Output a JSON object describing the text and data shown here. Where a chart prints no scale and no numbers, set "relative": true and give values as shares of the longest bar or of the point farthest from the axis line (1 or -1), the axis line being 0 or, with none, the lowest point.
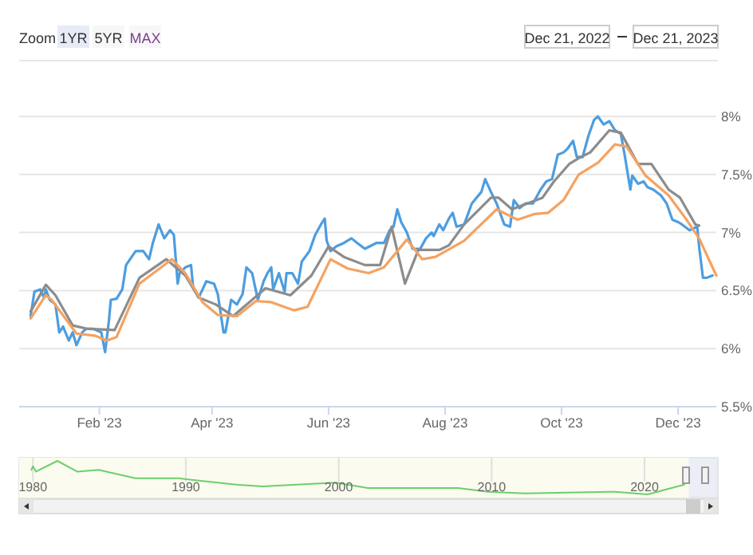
{
  "chart_data": [
    {
      "type": "line",
      "annotations": [
        "Zoom",
        "1YR",
        "5YR",
        "MAX",
        "Dec 21, 2022",
        "Dec 21, 2023"
      ],
      "xlim": [
        "2022-12-21",
        "2023-12-21"
      ],
      "xticks": [
        {
          "value": "2023-02-01",
          "label": "Feb '23"
        },
        {
          "value": "2023-04-01",
          "label": "Apr '23"
        },
        {
          "value": "2023-06-01",
          "label": "Jun '23"
        },
        {
          "value": "2023-08-01",
          "label": "Aug '23"
        },
        {
          "value": "2023-10-01",
          "label": "Oct '23"
        },
        {
          "value": "2023-12-01",
          "label": "Dec '23"
        }
      ],
      "ylim": [
        5.5,
        8
      ],
      "yticks": [
        {
          "value": 5.5,
          "label": "5.5%"
        },
        {
          "value": 6,
          "label": "6%"
        },
        {
          "value": 6.5,
          "label": "6.5%"
        },
        {
          "value": 7,
          "label": "7%"
        },
        {
          "value": 7.5,
          "label": "7.5%"
        },
        {
          "value": 8,
          "label": "8%"
        }
      ],
      "grid": "y",
      "marker": "none",
      "line_style": "solid",
      "series": [
        {
          "color": "#4d9de0",
          "x": [
            "2022-12-27",
            "2022-12-29",
            "2023-01-01",
            "2023-01-03",
            "2023-01-04",
            "2023-01-06",
            "2023-01-09",
            "2023-01-11",
            "2023-01-13",
            "2023-01-16",
            "2023-01-18",
            "2023-01-20",
            "2023-01-23",
            "2023-01-25",
            "2023-01-29",
            "2023-02-02",
            "2023-02-04",
            "2023-02-06",
            "2023-02-07",
            "2023-02-10",
            "2023-02-13",
            "2023-02-15",
            "2023-02-20",
            "2023-02-24",
            "2023-02-27",
            "2023-03-01",
            "2023-03-04",
            "2023-03-07",
            "2023-03-10",
            "2023-03-12",
            "2023-03-14",
            "2023-03-15",
            "2023-03-18",
            "2023-03-21",
            "2023-03-22",
            "2023-03-25",
            "2023-03-29",
            "2023-04-02",
            "2023-04-04",
            "2023-04-07",
            "2023-04-08",
            "2023-04-11",
            "2023-04-14",
            "2023-04-17",
            "2023-04-19",
            "2023-04-22",
            "2023-04-25",
            "2023-04-28",
            "2023-04-30",
            "2023-05-02",
            "2023-05-03",
            "2023-05-06",
            "2023-05-09",
            "2023-05-10",
            "2023-05-13",
            "2023-05-16",
            "2023-05-18",
            "2023-05-22",
            "2023-05-25",
            "2023-05-28",
            "2023-05-30",
            "2023-05-31",
            "2023-06-02",
            "2023-06-05",
            "2023-06-09",
            "2023-06-13",
            "2023-06-16",
            "2023-06-20",
            "2023-06-26",
            "2023-06-30",
            "2023-07-03",
            "2023-07-05",
            "2023-07-07",
            "2023-07-09",
            "2023-07-12",
            "2023-07-15",
            "2023-07-19",
            "2023-07-22",
            "2023-07-25",
            "2023-07-26",
            "2023-07-29",
            "2023-07-31",
            "2023-08-03",
            "2023-08-05",
            "2023-08-07",
            "2023-08-11",
            "2023-08-15",
            "2023-08-20",
            "2023-08-22",
            "2023-08-25",
            "2023-08-28",
            "2023-09-01",
            "2023-09-04",
            "2023-09-06",
            "2023-09-09",
            "2023-09-12",
            "2023-09-16",
            "2023-09-20",
            "2023-09-23",
            "2023-09-26",
            "2023-09-29",
            "2023-10-02",
            "2023-10-04",
            "2023-10-07",
            "2023-10-09",
            "2023-10-12",
            "2023-10-15",
            "2023-10-18",
            "2023-10-20",
            "2023-10-23",
            "2023-10-26",
            "2023-10-29",
            "2023-11-01",
            "2023-11-03",
            "2023-11-06",
            "2023-11-07",
            "2023-11-10",
            "2023-11-13",
            "2023-11-15",
            "2023-11-18",
            "2023-11-22",
            "2023-11-25",
            "2023-11-28",
            "2023-12-01",
            "2023-12-03",
            "2023-12-07",
            "2023-12-11",
            "2023-12-12",
            "2023-12-14",
            "2023-12-16",
            "2023-12-19"
          ],
          "values": [
            6.28,
            6.49,
            6.51,
            6.44,
            6.51,
            6.42,
            6.38,
            6.14,
            6.19,
            6.07,
            6.14,
            6.03,
            6.14,
            6.17,
            6.17,
            6.14,
            5.97,
            6.24,
            6.42,
            6.43,
            6.51,
            6.72,
            6.84,
            6.84,
            6.77,
            6.91,
            7.07,
            6.95,
            7.02,
            6.98,
            6.56,
            6.65,
            6.7,
            6.72,
            6.54,
            6.44,
            6.58,
            6.56,
            6.47,
            6.14,
            6.14,
            6.42,
            6.38,
            6.47,
            6.7,
            6.65,
            6.42,
            6.58,
            6.65,
            6.7,
            6.51,
            6.65,
            6.49,
            6.65,
            6.65,
            6.56,
            6.75,
            6.84,
            6.98,
            7.07,
            7.12,
            6.93,
            6.84,
            6.88,
            6.91,
            6.95,
            6.91,
            6.86,
            6.91,
            6.91,
            7.02,
            7.05,
            7.2,
            7.09,
            7.0,
            6.86,
            6.86,
            6.95,
            7.0,
            6.97,
            7.07,
            7.02,
            7.12,
            7.17,
            7.05,
            7.07,
            7.25,
            7.35,
            7.46,
            7.35,
            7.25,
            7.07,
            7.05,
            7.28,
            7.21,
            7.25,
            7.25,
            7.37,
            7.44,
            7.46,
            7.67,
            7.69,
            7.72,
            7.79,
            7.65,
            7.65,
            7.83,
            7.97,
            8.0,
            7.93,
            7.96,
            7.88,
            7.85,
            7.67,
            7.37,
            7.49,
            7.42,
            7.44,
            7.39,
            7.37,
            7.32,
            7.25,
            7.11,
            7.09,
            7.07,
            7.02,
            7.05,
            6.88,
            6.61,
            6.61,
            6.63
          ]
        },
        {
          "color": "#8c8c8c",
          "x": [
            "2022-12-27",
            "2023-01-04",
            "2023-01-09",
            "2023-01-18",
            "2023-01-26",
            "2023-02-09",
            "2023-02-22",
            "2023-03-08",
            "2023-03-18",
            "2023-03-25",
            "2023-04-03",
            "2023-04-12",
            "2023-04-29",
            "2023-05-12",
            "2023-05-23",
            "2023-06-01",
            "2023-06-09",
            "2023-06-20",
            "2023-06-28",
            "2023-07-04",
            "2023-07-11",
            "2023-07-18",
            "2023-07-29",
            "2023-08-03",
            "2023-08-11",
            "2023-08-25",
            "2023-08-29",
            "2023-09-05",
            "2023-09-13",
            "2023-09-21",
            "2023-09-27",
            "2023-10-05",
            "2023-10-11",
            "2023-10-16",
            "2023-10-26",
            "2023-11-01",
            "2023-11-10",
            "2023-11-17",
            "2023-11-26",
            "2023-12-02",
            "2023-12-10",
            "2023-12-12"
          ],
          "values": [
            6.32,
            6.55,
            6.46,
            6.2,
            6.17,
            6.16,
            6.61,
            6.77,
            6.63,
            6.44,
            6.38,
            6.28,
            6.52,
            6.46,
            6.63,
            6.88,
            6.79,
            6.72,
            6.72,
            7.05,
            6.56,
            6.85,
            6.85,
            6.89,
            7.07,
            7.3,
            7.3,
            7.2,
            7.25,
            7.3,
            7.44,
            7.59,
            7.65,
            7.69,
            7.88,
            7.86,
            7.59,
            7.59,
            7.37,
            7.3,
            7.07,
            7.06
          ]
        },
        {
          "color": "#f4a261",
          "x": [
            "2022-12-27",
            "2023-01-04",
            "2023-01-07",
            "2023-01-20",
            "2023-01-30",
            "2023-02-05",
            "2023-02-10",
            "2023-02-22",
            "2023-03-11",
            "2023-03-18",
            "2023-03-27",
            "2023-04-04",
            "2023-04-14",
            "2023-04-24",
            "2023-05-02",
            "2023-05-14",
            "2023-05-21",
            "2023-06-02",
            "2023-06-11",
            "2023-06-22",
            "2023-06-30",
            "2023-07-07",
            "2023-07-12",
            "2023-07-20",
            "2023-07-27",
            "2023-08-11",
            "2023-08-28",
            "2023-09-08",
            "2023-09-17",
            "2023-09-24",
            "2023-10-02",
            "2023-10-10",
            "2023-10-20",
            "2023-10-29",
            "2023-11-04",
            "2023-11-14",
            "2023-11-26",
            "2023-12-05",
            "2023-12-12",
            "2023-12-21"
          ],
          "values": [
            6.26,
            6.46,
            6.42,
            6.13,
            6.11,
            6.07,
            6.1,
            6.56,
            6.77,
            6.65,
            6.4,
            6.29,
            6.28,
            6.41,
            6.4,
            6.33,
            6.36,
            6.77,
            6.69,
            6.65,
            6.7,
            6.84,
            6.94,
            6.77,
            6.79,
            6.93,
            7.2,
            7.11,
            7.16,
            7.17,
            7.28,
            7.5,
            7.6,
            7.76,
            7.74,
            7.49,
            7.32,
            7.12,
            6.95,
            6.63
          ]
        }
      ]
    },
    {
      "type": "line",
      "relative": true,
      "grid": "x",
      "marker": "none",
      "line_style": "solid",
      "xlim": [
        1979.1,
        2024.8
      ],
      "xticks": [
        1980,
        1990,
        2000,
        2010,
        2020
      ],
      "series": [
        {
          "color": "#6ccf6c",
          "x": [
            1979.9,
            1980.0,
            1980.2,
            1981.6,
            1982.9,
            1984.3,
            1986.7,
            1989.5,
            1993.3,
            1995.0,
            1999.8,
            2001.9,
            2007.8,
            2009.8,
            2012.2,
            2018.1,
            2020.2,
            2022.6
          ],
          "values": [
            0.73,
            0.84,
            0.68,
            1,
            0.68,
            0.73,
            0.48,
            0.48,
            0.29,
            0.24,
            0.35,
            0.19,
            0.19,
            0.08,
            0.03,
            0.08,
            0,
            0.29
          ]
        }
      ]
    }
  ]
}
